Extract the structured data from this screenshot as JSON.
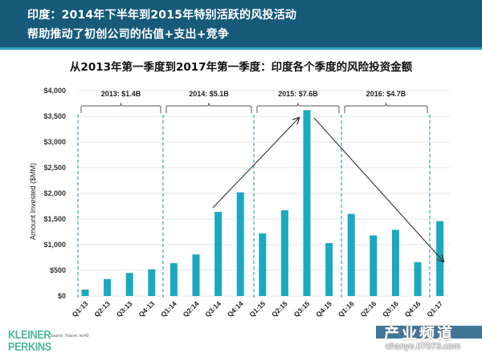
{
  "header": {
    "line1": "印度：2014年下半年到2015年特别活跃的风投活动",
    "line2": "帮助推动了初创公司的估值+支出+竞争",
    "bg_color": "#175a7a",
    "accent_color": "#2fa3b8"
  },
  "chart_title": "从2013年第一季度到2017年第一季度：印度各个季度的风险投资金额",
  "footer": {
    "logo_line1": "KLEINER",
    "logo_line2": "PERKINS",
    "source": "Source: Tracxn, Inc42",
    "watermark_text": "产业频道",
    "watermark_url": "chanye.07073.com"
  },
  "chart_data": {
    "type": "bar",
    "title": "从2013年第一季度到2017年第一季度：印度各个季度的风险投资金额",
    "xlabel": "",
    "ylabel": "Amount Invested ($MM)",
    "ylim": [
      0,
      4000
    ],
    "yticks": [
      "$0",
      "$500",
      "$1,000",
      "$1,500",
      "$2,000",
      "$2,500",
      "$3,000",
      "$3,500",
      "$4,000"
    ],
    "grid": true,
    "bar_color": "#1aa9bf",
    "categories": [
      "Q1:13",
      "Q2:13",
      "Q3:13",
      "Q4:13",
      "Q1:14",
      "Q2:14",
      "Q3:14",
      "Q4:14",
      "Q1:15",
      "Q2:15",
      "Q3:15",
      "Q4:15",
      "Q1:16",
      "Q2:16",
      "Q3:16",
      "Q4:16",
      "Q1:17"
    ],
    "values": [
      125,
      330,
      450,
      520,
      640,
      810,
      1640,
      2020,
      1220,
      1670,
      3620,
      1030,
      1600,
      1180,
      1290,
      660,
      1460
    ],
    "year_groups": [
      {
        "label": "2013: $1.4B",
        "start": 0,
        "end": 3
      },
      {
        "label": "2014: $5.1B",
        "start": 4,
        "end": 7
      },
      {
        "label": "2015: $7.6B",
        "start": 8,
        "end": 11
      },
      {
        "label": "2016: $4.7B",
        "start": 12,
        "end": 15
      }
    ],
    "annotations": [
      {
        "type": "arrow",
        "from": "Q3:14",
        "to": "Q3:15",
        "description": "upward trend arrow"
      },
      {
        "type": "arrow",
        "from": "Q3:15",
        "to": "Q1:17",
        "description": "downward trend arrow"
      }
    ]
  }
}
